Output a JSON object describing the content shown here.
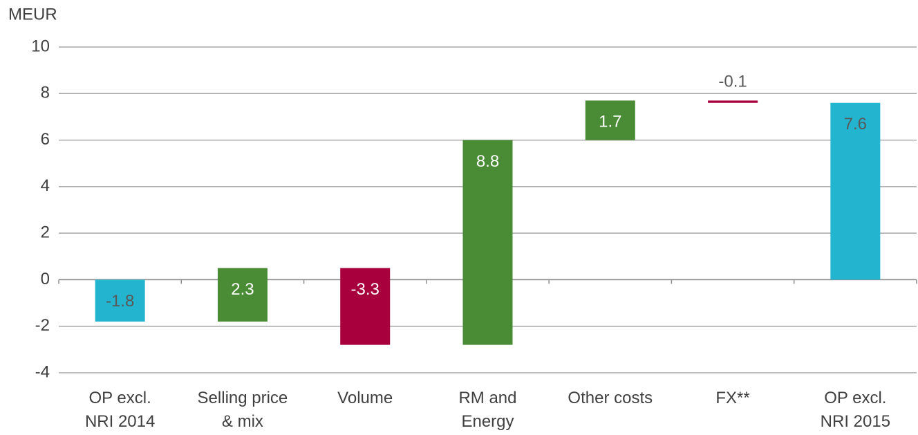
{
  "chart_data": {
    "type": "waterfall",
    "y_label": "MEUR",
    "categories": [
      [
        "OP excl.",
        "NRI 2014"
      ],
      [
        "Selling price",
        "& mix"
      ],
      [
        "Volume"
      ],
      [
        "RM and",
        "Energy"
      ],
      [
        "Other costs"
      ],
      [
        "FX**"
      ],
      [
        "OP excl.",
        "NRI 2015"
      ]
    ],
    "values": [
      -1.8,
      2.3,
      -3.3,
      8.8,
      1.7,
      -0.1,
      7.6
    ],
    "measure": [
      "absolute",
      "relative",
      "relative",
      "relative",
      "relative",
      "relative",
      "total"
    ],
    "colors": [
      "#23b4d0",
      "#4a8c35",
      "#a8003c",
      "#4a8c35",
      "#4a8c35",
      "#a8003c",
      "#23b4d0"
    ],
    "ylim": [
      -4,
      10
    ],
    "yticks": [
      -4,
      -2,
      0,
      2,
      4,
      6,
      8,
      10
    ],
    "grid": true
  }
}
